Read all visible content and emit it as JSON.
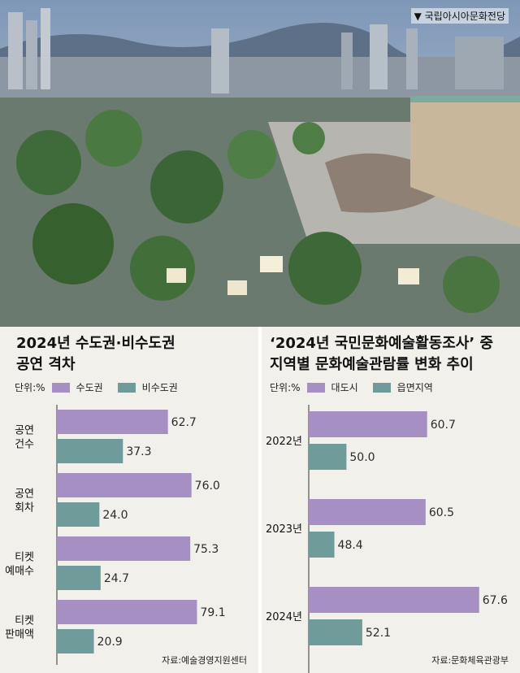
{
  "photo": {
    "caption": "▼ 국립아시아문화전당"
  },
  "colors": {
    "primary": "#a68fc3",
    "secondary": "#6f9b9b",
    "panel_bg": "#f1f0ea",
    "axis": "#333333"
  },
  "chart_data": [
    {
      "type": "bar",
      "orientation": "horizontal",
      "title_lines": [
        "2024년 수도권·비수도권",
        "공연 격차"
      ],
      "unit": "단위:%",
      "categories": [
        [
          "공연",
          "건수"
        ],
        [
          "공연",
          "회차"
        ],
        [
          "티켓",
          "예매수"
        ],
        [
          "티켓",
          "판매액"
        ]
      ],
      "series": [
        {
          "name": "수도권",
          "values": [
            62.7,
            76.0,
            75.3,
            79.1
          ]
        },
        {
          "name": "비수도권",
          "values": [
            37.3,
            24.0,
            24.7,
            20.9
          ]
        }
      ],
      "xlim": [
        0,
        100
      ],
      "grid": false,
      "legend": "top-left",
      "source": "자료:예술경영지원센터"
    },
    {
      "type": "bar",
      "orientation": "horizontal",
      "title_lines": [
        "‘2024년 국민문화예술활동조사’ 중",
        "지역별 문화예술관람률 변화 추이"
      ],
      "unit": "단위:%",
      "categories": [
        [
          "2022년"
        ],
        [
          "2023년"
        ],
        [
          "2024년"
        ]
      ],
      "series": [
        {
          "name": "대도시",
          "values": [
            60.7,
            60.5,
            67.6
          ]
        },
        {
          "name": "읍면지역",
          "values": [
            50.0,
            48.4,
            52.1
          ]
        }
      ],
      "xlim": [
        45,
        70
      ],
      "grid": false,
      "legend": "top-left",
      "source": "자료:문화체육관광부"
    }
  ]
}
